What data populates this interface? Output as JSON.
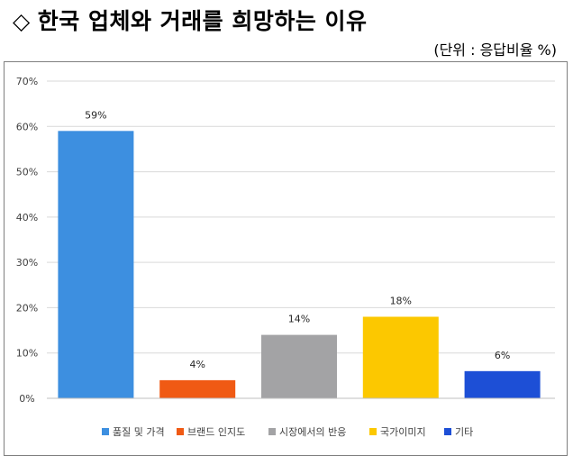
{
  "header": {
    "title_icon": "◇",
    "title": "한국 업체와 거래를 희망하는 이유",
    "unit": "(단위 : 응답비율 %)"
  },
  "chart_data": {
    "type": "bar",
    "categories": [
      "품질 및 가격",
      "브랜드 인지도",
      "시장에서의 반응",
      "국가이미지",
      "기타"
    ],
    "values": [
      59,
      4,
      14,
      18,
      6
    ],
    "value_labels": [
      "59%",
      "4%",
      "14%",
      "18%",
      "6%"
    ],
    "colors": [
      "#3d8fe0",
      "#f05a14",
      "#a3a3a5",
      "#fcc800",
      "#1d4fd6"
    ],
    "title": "",
    "xlabel": "",
    "ylabel": "",
    "ylim": [
      0,
      70
    ],
    "yticks": [
      0,
      10,
      20,
      30,
      40,
      50,
      60,
      70
    ],
    "ytick_labels": [
      "0%",
      "10%",
      "20%",
      "30%",
      "40%",
      "50%",
      "60%",
      "70%"
    ],
    "grid": true,
    "legend": "bottom"
  }
}
